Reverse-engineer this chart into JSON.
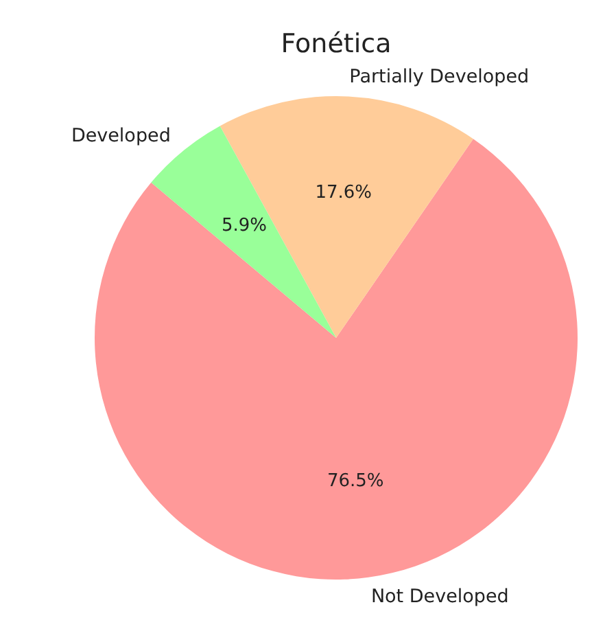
{
  "chart_data": {
    "type": "pie",
    "title": "Fonética",
    "categories": [
      "Not Developed",
      "Partially Developed",
      "Developed"
    ],
    "values": [
      76.5,
      17.6,
      5.9
    ],
    "colors": [
      "#ff9999",
      "#ffcc99",
      "#99ff99"
    ],
    "value_labels": [
      "76.5%",
      "17.6%",
      "5.9%"
    ]
  }
}
